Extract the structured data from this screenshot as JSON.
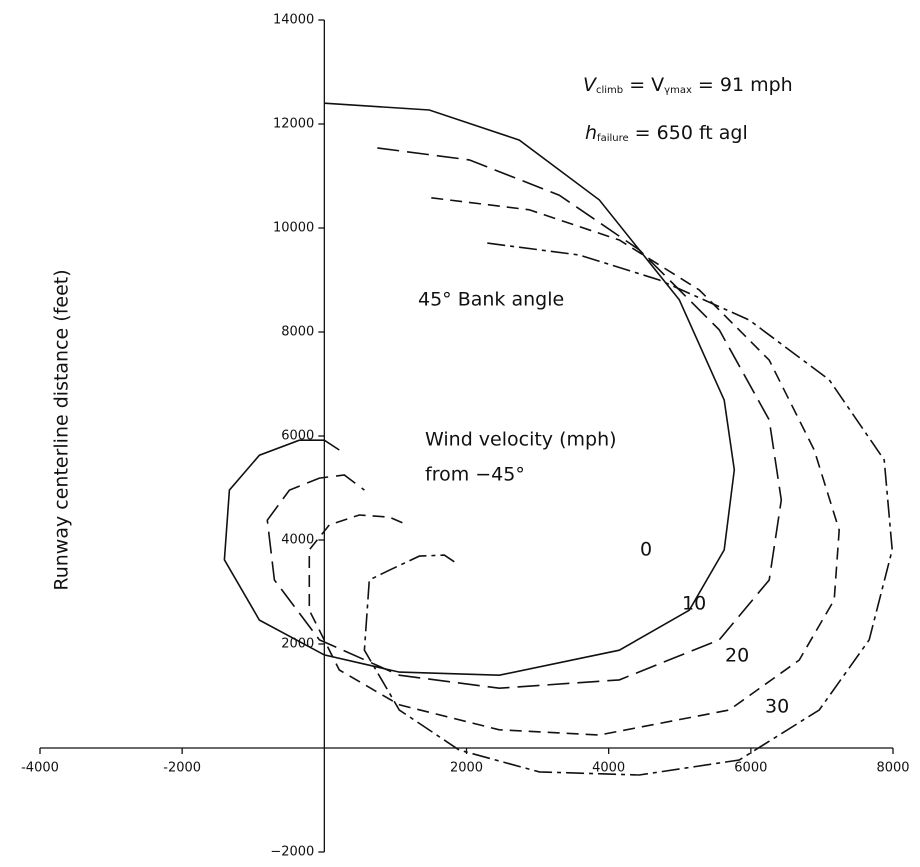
{
  "chart_data": {
    "type": "line",
    "y_label": "Runway centerline distance (feet)",
    "xlim": [
      -4000,
      8000
    ],
    "ylim": [
      -2000,
      14000
    ],
    "xticks": [
      -4000,
      -2000,
      2000,
      4000,
      6000,
      8000
    ],
    "yticks": [
      {
        "value": -2000,
        "label": "−2000"
      },
      2000,
      4000,
      6000,
      8000,
      10000,
      12000,
      14000
    ],
    "notes": [
      [
        {
          "text": "V"
        },
        {
          "text": "climb",
          "sub": true
        },
        {
          "text": " = V"
        },
        {
          "text": "γmax",
          "sub": true
        },
        {
          "text": " = 91 mph"
        }
      ],
      [
        {
          "text": "h"
        },
        {
          "text": "failure",
          "sub": true
        },
        {
          "text": " = 650 ft agl"
        }
      ]
    ],
    "annotations": [
      "45° Bank angle",
      "Wind velocity (mph)",
      "from −45°"
    ],
    "series": [
      {
        "name": "0",
        "color": "#111111",
        "dash": "none",
        "x": [
          0,
          1477,
          2743,
          3868,
          4993,
          5626,
          5767,
          5626,
          5134,
          4149,
          2461,
          1055,
          0,
          -914,
          -1406,
          -1336,
          -914,
          -352,
          0,
          211
        ],
        "values": [
          12400,
          12270,
          11690,
          10540,
          8620,
          6690,
          5350,
          3810,
          2650,
          1880,
          1400,
          1460,
          1790,
          2460,
          3620,
          4960,
          5630,
          5920,
          5920,
          5730
        ]
      },
      {
        "name": "10",
        "color": "#111111",
        "dash": "22 8",
        "x": [
          745,
          2039,
          3305,
          4430,
          5556,
          6259,
          6428,
          6259,
          5556,
          4149,
          2461,
          1055,
          -70,
          -703,
          -802,
          -492,
          -70,
          281,
          563
        ],
        "values": [
          11540,
          11310,
          10630,
          9580,
          8040,
          6310,
          4770,
          3230,
          2080,
          1310,
          1150,
          1400,
          2080,
          3230,
          4380,
          4960,
          5190,
          5250,
          4960
        ]
      },
      {
        "name": "20",
        "color": "#111111",
        "dash": "12 7",
        "x": [
          1505,
          2883,
          4149,
          5274,
          6259,
          6892,
          7243,
          7173,
          6681,
          5696,
          3868,
          2461,
          1055,
          211,
          -211,
          -211,
          70,
          492,
          914,
          1167
        ],
        "values": [
          10580,
          10350,
          9770,
          8810,
          7460,
          5730,
          4190,
          2850,
          1690,
          730,
          250,
          350,
          830,
          1500,
          2650,
          3810,
          4290,
          4480,
          4440,
          4290
        ]
      },
      {
        "name": "30",
        "color": "#111111",
        "dash": "18 5 4 5",
        "x": [
          2293,
          3587,
          4712,
          5977,
          7102,
          7876,
          7989,
          7665,
          6962,
          5837,
          4430,
          3024,
          1899,
          1055,
          563,
          633,
          914,
          1336,
          1688,
          1828
        ],
        "values": [
          9710,
          9480,
          9000,
          8230,
          7080,
          5540,
          3810,
          2080,
          730,
          -230,
          -520,
          -460,
          -40,
          730,
          1880,
          3230,
          3420,
          3690,
          3710,
          3580
        ]
      }
    ]
  }
}
